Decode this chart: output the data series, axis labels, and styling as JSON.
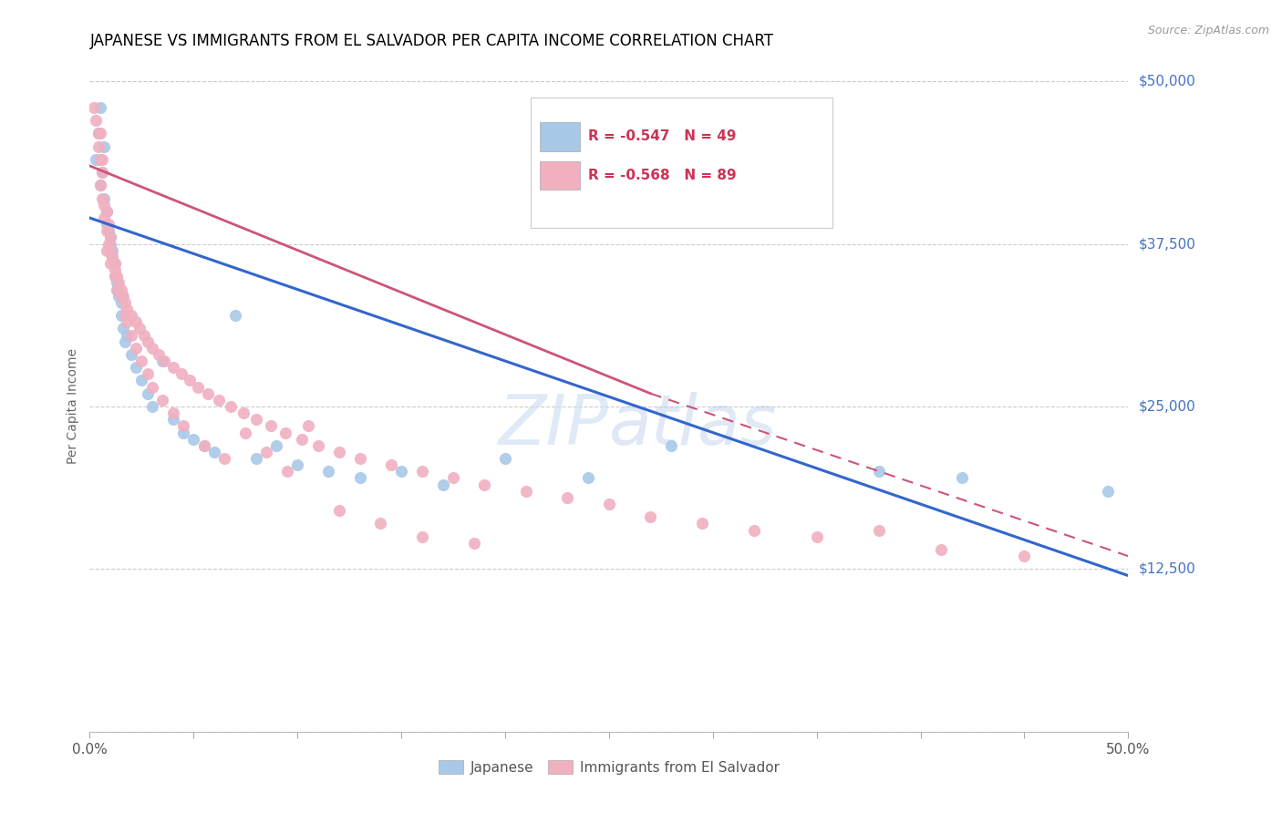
{
  "title": "JAPANESE VS IMMIGRANTS FROM EL SALVADOR PER CAPITA INCOME CORRELATION CHART",
  "source": "Source: ZipAtlas.com",
  "ylabel": "Per Capita Income",
  "yticks": [
    0,
    12500,
    25000,
    37500,
    50000
  ],
  "ytick_labels": [
    "",
    "$12,500",
    "$25,000",
    "$37,500",
    "$50,000"
  ],
  "xmin": 0.0,
  "xmax": 0.5,
  "ymin": 0,
  "ymax": 50000,
  "legend_r1": "-0.547",
  "legend_n1": "49",
  "legend_r2": "-0.568",
  "legend_n2": "89",
  "blue_color": "#a8c8e8",
  "pink_color": "#f0b0c0",
  "blue_line_color": "#3366cc",
  "pink_line_color": "#cc5577",
  "pink_line_dash": [
    6,
    3
  ],
  "watermark": "ZIP atlas",
  "background_color": "#ffffff",
  "title_fontsize": 12,
  "axis_label_fontsize": 10,
  "tick_fontsize": 11,
  "legend_fontsize": 11,
  "blue_scatter_x": [
    0.003,
    0.004,
    0.005,
    0.005,
    0.006,
    0.007,
    0.007,
    0.008,
    0.008,
    0.009,
    0.01,
    0.01,
    0.011,
    0.011,
    0.012,
    0.012,
    0.013,
    0.013,
    0.014,
    0.015,
    0.015,
    0.016,
    0.017,
    0.018,
    0.02,
    0.022,
    0.025,
    0.028,
    0.03,
    0.035,
    0.04,
    0.045,
    0.05,
    0.055,
    0.06,
    0.07,
    0.08,
    0.09,
    0.1,
    0.115,
    0.13,
    0.15,
    0.17,
    0.2,
    0.24,
    0.28,
    0.38,
    0.42,
    0.49
  ],
  "blue_scatter_y": [
    44000,
    46000,
    42000,
    48000,
    43000,
    41000,
    45000,
    40000,
    39000,
    38500,
    38000,
    37500,
    37000,
    36500,
    36000,
    35000,
    34500,
    34000,
    33500,
    33000,
    32000,
    31000,
    30000,
    30500,
    29000,
    28000,
    27000,
    26000,
    25000,
    28500,
    24000,
    23000,
    22500,
    22000,
    21500,
    32000,
    21000,
    22000,
    20500,
    20000,
    19500,
    20000,
    19000,
    21000,
    19500,
    22000,
    20000,
    19500,
    18500
  ],
  "pink_scatter_x": [
    0.002,
    0.003,
    0.004,
    0.004,
    0.005,
    0.005,
    0.006,
    0.006,
    0.007,
    0.007,
    0.008,
    0.008,
    0.009,
    0.009,
    0.01,
    0.01,
    0.011,
    0.012,
    0.012,
    0.013,
    0.014,
    0.015,
    0.016,
    0.017,
    0.018,
    0.02,
    0.022,
    0.024,
    0.026,
    0.028,
    0.03,
    0.033,
    0.036,
    0.04,
    0.044,
    0.048,
    0.052,
    0.057,
    0.062,
    0.068,
    0.074,
    0.08,
    0.087,
    0.094,
    0.102,
    0.11,
    0.12,
    0.13,
    0.145,
    0.16,
    0.175,
    0.19,
    0.21,
    0.23,
    0.25,
    0.27,
    0.295,
    0.32,
    0.35,
    0.38,
    0.41,
    0.45,
    0.005,
    0.006,
    0.008,
    0.01,
    0.012,
    0.013,
    0.015,
    0.017,
    0.018,
    0.02,
    0.022,
    0.025,
    0.028,
    0.03,
    0.035,
    0.04,
    0.045,
    0.055,
    0.065,
    0.075,
    0.085,
    0.095,
    0.105,
    0.12,
    0.14,
    0.16,
    0.185
  ],
  "pink_scatter_y": [
    48000,
    47000,
    46000,
    45000,
    44000,
    42000,
    43000,
    41000,
    40500,
    39500,
    40000,
    38500,
    39000,
    37500,
    38000,
    37000,
    36500,
    36000,
    35500,
    35000,
    34500,
    34000,
    33500,
    33000,
    32500,
    32000,
    31500,
    31000,
    30500,
    30000,
    29500,
    29000,
    28500,
    28000,
    27500,
    27000,
    26500,
    26000,
    25500,
    25000,
    24500,
    24000,
    23500,
    23000,
    22500,
    22000,
    21500,
    21000,
    20500,
    20000,
    19500,
    19000,
    18500,
    18000,
    17500,
    16500,
    16000,
    15500,
    15000,
    15500,
    14000,
    13500,
    46000,
    44000,
    37000,
    36000,
    35000,
    34000,
    33500,
    32000,
    31500,
    30500,
    29500,
    28500,
    27500,
    26500,
    25500,
    24500,
    23500,
    22000,
    21000,
    23000,
    21500,
    20000,
    23500,
    17000,
    16000,
    15000,
    14500
  ]
}
